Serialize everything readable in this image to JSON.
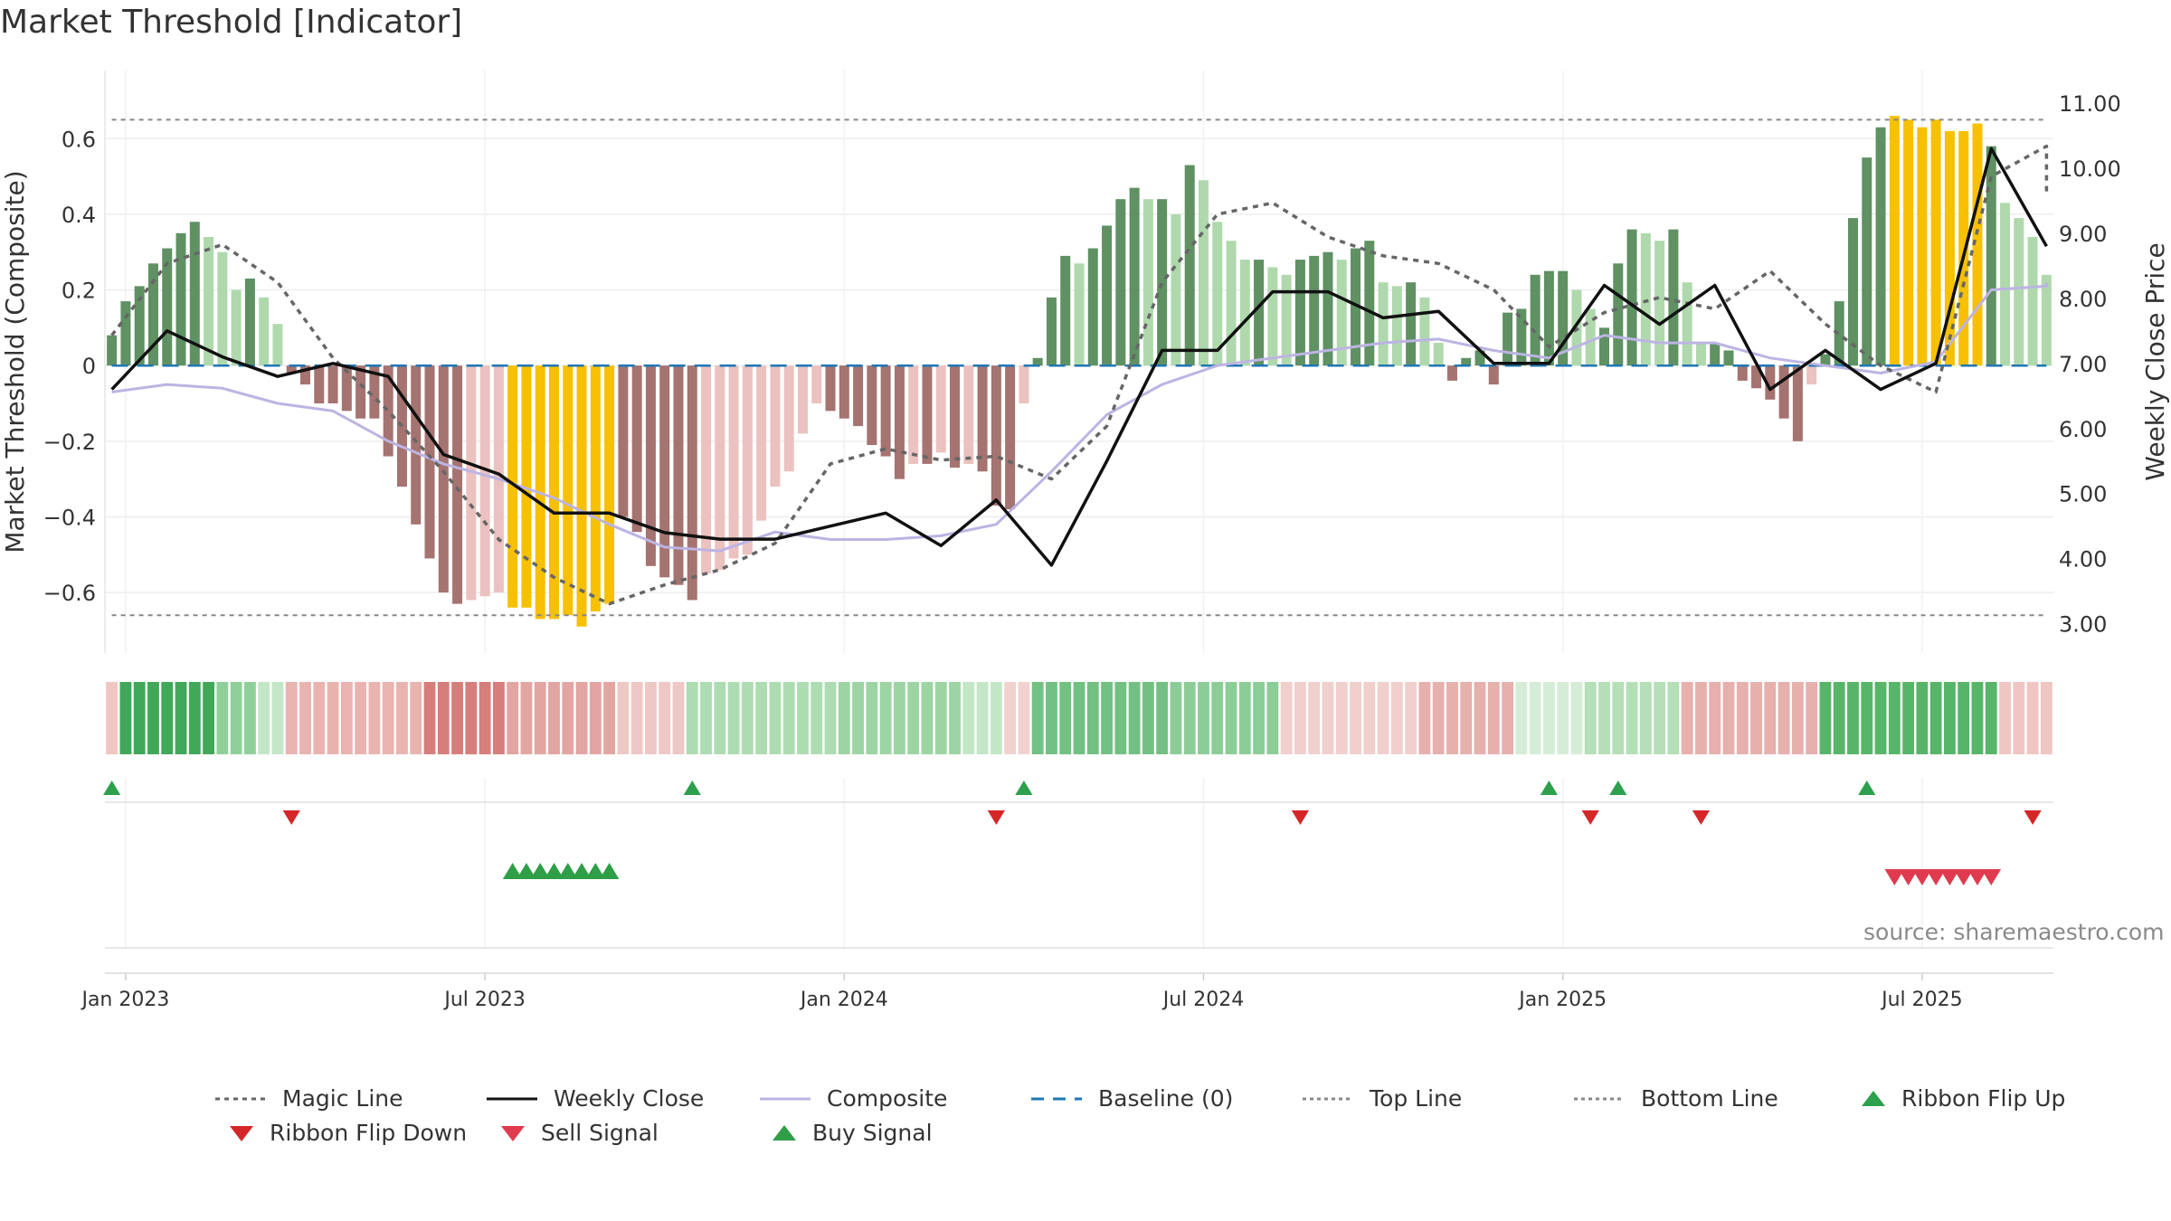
{
  "chart_data": {
    "type": "bar",
    "title": "Market Threshold [Indicator]",
    "ylabel": "Market Threshold (Composite)",
    "y2label": "Weekly Close Price",
    "ylim": [
      -0.76,
      0.78
    ],
    "y2lim": [
      2.55,
      11.5
    ],
    "yticks": [
      0.6,
      0.4,
      0.2,
      0,
      -0.2,
      -0.4,
      -0.6
    ],
    "ytick_labels": [
      "0.6",
      "0.4",
      "0.2",
      "0",
      "−0.2",
      "−0.4",
      "−0.6"
    ],
    "y2ticks": [
      11,
      10,
      9,
      8,
      7,
      6,
      5,
      4,
      3
    ],
    "y2tick_labels": [
      "11.00",
      "10.00",
      "9.00",
      "8.00",
      "7.00",
      "6.00",
      "5.00",
      "4.00",
      "3.00"
    ],
    "xticks": [
      {
        "week": 1,
        "label": "Jan 2023"
      },
      {
        "week": 27,
        "label": "Jul 2023"
      },
      {
        "week": 53,
        "label": "Jan 2024"
      },
      {
        "week": 79,
        "label": "Jul 2024"
      },
      {
        "week": 105,
        "label": "Jan 2025"
      },
      {
        "week": 131,
        "label": "Jul 2025"
      }
    ],
    "top_line": 0.65,
    "bottom_line": -0.66,
    "grid": true,
    "legend_position": "bottom",
    "segments": [
      {
        "from": 0,
        "to": 12,
        "values": [
          0.08,
          0.17,
          0.21,
          0.27,
          0.31,
          0.35,
          0.38,
          0.34,
          0.3,
          0.2,
          0.23,
          0.18,
          0.11
        ]
      },
      {
        "from": 13,
        "to": 28,
        "values": [
          -0.02,
          -0.05,
          -0.1,
          -0.1,
          -0.12,
          -0.14,
          -0.14,
          -0.24,
          -0.32,
          -0.42,
          -0.51,
          -0.6,
          -0.63,
          -0.62,
          -0.61,
          -0.6
        ]
      },
      {
        "from": 29,
        "to": 36,
        "values": [
          -0.64,
          -0.64,
          -0.67,
          -0.67,
          -0.66,
          -0.69,
          -0.65,
          -0.63
        ]
      },
      {
        "from": 37,
        "to": 66,
        "values": [
          -0.4,
          -0.44,
          -0.53,
          -0.56,
          -0.58,
          -0.62,
          -0.55,
          -0.54,
          -0.51,
          -0.5,
          -0.41,
          -0.32,
          -0.28,
          -0.18,
          -0.1,
          -0.12,
          -0.14,
          -0.16,
          -0.21,
          -0.24,
          -0.3,
          -0.26,
          -0.26,
          -0.23,
          -0.27,
          -0.26,
          -0.28,
          -0.37,
          -0.38,
          -0.1
        ]
      },
      {
        "from": 67,
        "to": 107,
        "values": [
          0.02,
          0.18,
          0.29,
          0.27,
          0.31,
          0.37,
          0.44,
          0.47,
          0.44,
          0.44,
          0.4,
          0.53,
          0.49,
          0.38,
          0.33,
          0.28,
          0.28,
          0.26,
          0.24,
          0.28,
          0.29,
          0.3,
          0.28,
          0.31,
          0.33,
          0.22,
          0.21,
          0.22,
          0.18,
          0.06,
          -0.04,
          0.02,
          0.04,
          -0.05,
          0.14,
          0.15,
          0.24,
          0.25,
          0.25,
          0.2,
          0.15
        ]
      },
      {
        "from": 108,
        "to": 116,
        "values": [
          0.1,
          0.27,
          0.36,
          0.35,
          0.33,
          0.36,
          0.22,
          0.06,
          0.06
        ]
      },
      {
        "from": 117,
        "to": 123,
        "values": [
          0.04,
          -0.04,
          -0.06,
          -0.09,
          -0.14,
          -0.2,
          -0.05
        ]
      },
      {
        "from": 124,
        "to": 128,
        "values": [
          0.03,
          0.17,
          0.39,
          0.55,
          0.63
        ]
      },
      {
        "from": 129,
        "to": 135,
        "values": [
          0.66,
          0.65,
          0.63,
          0.65,
          0.62,
          0.62,
          0.64
        ]
      },
      {
        "from": 136,
        "to": 140,
        "values": [
          0.58,
          0.43,
          0.39,
          0.34,
          0.24
        ]
      }
    ],
    "series": [
      {
        "name": "Magic Line",
        "color": "#666666",
        "segments": [
          {
            "from": 0,
            "to": 140,
            "step": 4,
            "values": [
              0.08,
              0.27,
              0.32,
              0.22,
              0.02,
              -0.12,
              -0.28,
              -0.46,
              -0.56,
              -0.63,
              -0.58,
              -0.54,
              -0.47,
              -0.26,
              -0.22,
              -0.25,
              -0.24,
              -0.3,
              -0.16,
              0.22,
              0.4,
              0.43,
              0.34,
              0.29,
              0.27,
              0.2,
              0.05,
              0.14,
              0.18,
              0.15,
              0.25,
              0.11,
              0.0,
              -0.07,
              0.5,
              0.58,
              0.46
            ]
          }
        ]
      },
      {
        "name": "Weekly Close",
        "color": "#111111",
        "segments": [
          {
            "from": 0,
            "to": 140,
            "step": 4,
            "values": [
              6.6,
              7.5,
              7.1,
              6.8,
              7.0,
              6.8,
              5.6,
              5.3,
              4.7,
              4.7,
              4.4,
              4.3,
              4.3,
              4.5,
              4.7,
              4.2,
              4.9,
              3.9,
              5.5,
              7.2,
              7.2,
              8.1,
              8.1,
              7.7,
              7.8,
              7.0,
              7.0,
              8.2,
              7.6,
              8.2,
              6.6,
              7.2,
              6.6,
              7.0,
              10.3,
              8.8,
              8.8
            ]
          }
        ]
      },
      {
        "name": "Composite",
        "color": "#bcb4e3",
        "segments": [
          {
            "from": 0,
            "to": 140,
            "step": 4,
            "values": [
              -0.07,
              -0.05,
              -0.06,
              -0.1,
              -0.12,
              -0.2,
              -0.26,
              -0.3,
              -0.35,
              -0.42,
              -0.48,
              -0.49,
              -0.44,
              -0.46,
              -0.46,
              -0.45,
              -0.42,
              -0.28,
              -0.13,
              -0.05,
              0.0,
              0.02,
              0.04,
              0.06,
              0.07,
              0.04,
              0.02,
              0.08,
              0.06,
              0.06,
              0.02,
              0.0,
              -0.02,
              0.01,
              0.2,
              0.21,
              0.22
            ]
          }
        ]
      },
      {
        "name": "Baseline (0)",
        "color": "#1f77b4",
        "segments": [
          {
            "from": 0,
            "to": 140,
            "step": 140,
            "values": [
              0,
              0
            ]
          }
        ]
      },
      {
        "name": "Top Line",
        "color": "#888888",
        "segments": [
          {
            "from": 0,
            "to": 140,
            "step": 140,
            "values": [
              0.65,
              0.65
            ]
          }
        ]
      },
      {
        "name": "Bottom Line",
        "color": "#888888",
        "segments": [
          {
            "from": 0,
            "to": 140,
            "step": 140,
            "values": [
              -0.66,
              -0.66
            ]
          }
        ]
      }
    ],
    "ribbon": [
      {
        "from": 0,
        "to": 0,
        "color": "#f0c6c2"
      },
      {
        "from": 1,
        "to": 7,
        "color": "#41a85a"
      },
      {
        "from": 8,
        "to": 10,
        "color": "#8fd09a"
      },
      {
        "from": 11,
        "to": 12,
        "color": "#c3e7c6"
      },
      {
        "from": 13,
        "to": 22,
        "color": "#e9b4b0"
      },
      {
        "from": 23,
        "to": 28,
        "color": "#d67e7c"
      },
      {
        "from": 29,
        "to": 36,
        "color": "#e3a5a2"
      },
      {
        "from": 37,
        "to": 41,
        "color": "#eec8c5"
      },
      {
        "from": 42,
        "to": 52,
        "color": "#aedcb2"
      },
      {
        "from": 53,
        "to": 61,
        "color": "#9cd5a3"
      },
      {
        "from": 62,
        "to": 64,
        "color": "#c3e7c6"
      },
      {
        "from": 65,
        "to": 66,
        "color": "#f2d2cf"
      },
      {
        "from": 67,
        "to": 76,
        "color": "#72c183"
      },
      {
        "from": 77,
        "to": 84,
        "color": "#8ccd97"
      },
      {
        "from": 85,
        "to": 94,
        "color": "#f0cfcc"
      },
      {
        "from": 95,
        "to": 101,
        "color": "#e6b0ad"
      },
      {
        "from": 102,
        "to": 106,
        "color": "#d5edd7"
      },
      {
        "from": 107,
        "to": 113,
        "color": "#b4dfb7"
      },
      {
        "from": 114,
        "to": 123,
        "color": "#e6b0ad"
      },
      {
        "from": 124,
        "to": 136,
        "color": "#57b56a"
      },
      {
        "from": 137,
        "to": 140,
        "color": "#f0c6c2"
      }
    ],
    "ribbon_flip_up": [
      0,
      42,
      66,
      104,
      109,
      127
    ],
    "ribbon_flip_down": [
      13,
      64,
      86,
      107,
      115,
      139
    ],
    "buy_signal": [
      29,
      30,
      31,
      32,
      33,
      34,
      35,
      36
    ],
    "sell_signal": [
      129,
      130,
      131,
      132,
      133,
      134,
      135,
      136
    ],
    "colors": {
      "strong_up": "#5f9163",
      "weak_up": "#afd9ad",
      "strong_down": "#a57370",
      "weak_down": "#ebc2bf",
      "extreme": "#f7c000"
    },
    "source": "source: sharemaestro.com"
  }
}
